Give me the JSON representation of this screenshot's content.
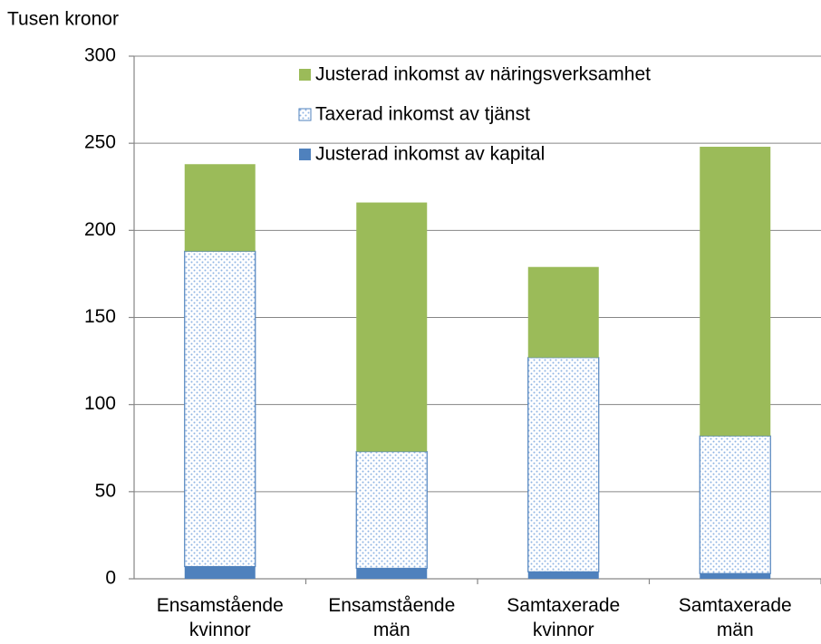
{
  "chart_data": {
    "type": "stacked_bar",
    "y_label": "Tusen kronor",
    "categories": [
      "Ensamstående kvinnor",
      "Ensamstående män",
      "Samtaxerade kvinnor",
      "Samtaxerade män"
    ],
    "series": [
      {
        "name": "Justerad inkomst av kapital",
        "color": "#4f81bd",
        "values": [
          7,
          6,
          4,
          3
        ]
      },
      {
        "name": "Taxerad inkomst av tjänst",
        "color": "#4f81bd",
        "pattern": "dots",
        "values": [
          181,
          67,
          123,
          79
        ]
      },
      {
        "name": "Justerad inkomst av näringsverksamhet",
        "color": "#9bbb59",
        "values": [
          50,
          143,
          52,
          166
        ]
      }
    ],
    "ylim": [
      0,
      300
    ],
    "yticks": [
      0,
      50,
      100,
      150,
      200,
      250,
      300
    ],
    "grid": true
  }
}
